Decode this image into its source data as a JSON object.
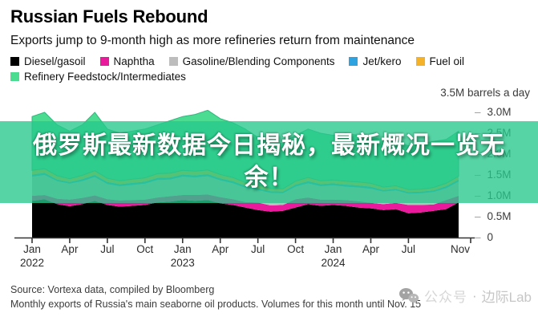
{
  "header": {
    "title": "Russian Fuels Rebound",
    "subtitle": "Exports jump to 9-month high as more refineries return from maintenance"
  },
  "chart": {
    "unit_label": "3.5M barrels a day"
  },
  "banner": {
    "line1": "俄罗斯最新数据今日揭秘，最新概况一览无",
    "line2": "余！",
    "bg_color": "#26C88C",
    "bg_opacity": 0.78,
    "text_color": "#FFFFFF"
  },
  "footer": {
    "source": "Source: Vortexa data, compiled by Bloomberg",
    "note": "Monthly exports of Russia's main seaborne oil products. Volumes for this month until Nov. 15",
    "watermark_account": "公众号",
    "watermark_separator": "·",
    "watermark_name": "边际Lab"
  },
  "chart_data": {
    "type": "area",
    "stacked": true,
    "title": "Russian Fuels Rebound",
    "unit": "million barrels a day",
    "ylim": [
      0,
      3.5
    ],
    "grid": false,
    "legend_position": "top",
    "axis_color": "#333333",
    "x_months": [
      "Jan 2022",
      "Feb 2022",
      "Mar 2022",
      "Apr 2022",
      "May 2022",
      "Jun 2022",
      "Jul 2022",
      "Aug 2022",
      "Sep 2022",
      "Oct 2022",
      "Nov 2022",
      "Dec 2022",
      "Jan 2023",
      "Feb 2023",
      "Mar 2023",
      "Apr 2023",
      "May 2023",
      "Jun 2023",
      "Jul 2023",
      "Aug 2023",
      "Sep 2023",
      "Oct 2023",
      "Nov 2023",
      "Dec 2023",
      "Jan 2024",
      "Feb 2024",
      "Mar 2024",
      "Apr 2024",
      "May 2024",
      "Jun 2024",
      "Jul 2024",
      "Aug 2024",
      "Sep 2024",
      "Oct 2024",
      "Nov 2024"
    ],
    "x_ticks": [
      {
        "i": 0,
        "label": "Jan",
        "year": "2022"
      },
      {
        "i": 3,
        "label": "Apr"
      },
      {
        "i": 6,
        "label": "Jul"
      },
      {
        "i": 9,
        "label": "Oct"
      },
      {
        "i": 12,
        "label": "Jan",
        "year": "2023"
      },
      {
        "i": 15,
        "label": "Apr"
      },
      {
        "i": 18,
        "label": "Jul"
      },
      {
        "i": 21,
        "label": "Oct"
      },
      {
        "i": 24,
        "label": "Jan",
        "year": "2024"
      },
      {
        "i": 27,
        "label": "Apr"
      },
      {
        "i": 30,
        "label": "Jul"
      },
      {
        "i": 34,
        "label": "Nov"
      }
    ],
    "y_ticks": [
      {
        "v": 0,
        "label": "0"
      },
      {
        "v": 0.5,
        "label": "0.5M"
      },
      {
        "v": 1.0,
        "label": "1.0M"
      },
      {
        "v": 1.5,
        "label": "1.5M"
      },
      {
        "v": 2.0,
        "label": "2.0M"
      },
      {
        "v": 2.5,
        "label": "2.5M"
      },
      {
        "v": 3.0,
        "label": "3.0M"
      }
    ],
    "series": [
      {
        "name": "Diesel/gasoil",
        "color": "#000000",
        "values": [
          0.88,
          0.92,
          0.8,
          0.75,
          0.8,
          0.88,
          0.78,
          0.74,
          0.76,
          0.78,
          0.84,
          0.86,
          0.9,
          0.88,
          0.9,
          0.82,
          0.78,
          0.72,
          0.66,
          0.62,
          0.64,
          0.72,
          0.8,
          0.76,
          0.78,
          0.76,
          0.72,
          0.7,
          0.66,
          0.68,
          0.58,
          0.6,
          0.64,
          0.68,
          0.84
        ]
      },
      {
        "name": "Naphtha",
        "color": "#EA1A9C",
        "values": [
          0.12,
          0.1,
          0.13,
          0.16,
          0.15,
          0.13,
          0.14,
          0.15,
          0.14,
          0.13,
          0.12,
          0.13,
          0.12,
          0.14,
          0.13,
          0.15,
          0.14,
          0.13,
          0.18,
          0.15,
          0.14,
          0.2,
          0.16,
          0.15,
          0.13,
          0.14,
          0.15,
          0.13,
          0.14,
          0.15,
          0.2,
          0.18,
          0.15,
          0.22,
          0.16
        ]
      },
      {
        "name": "Gasoline/Blending Components",
        "color": "#BDBDBD",
        "values": [
          0.46,
          0.48,
          0.42,
          0.38,
          0.4,
          0.44,
          0.36,
          0.34,
          0.36,
          0.38,
          0.42,
          0.4,
          0.44,
          0.42,
          0.44,
          0.4,
          0.38,
          0.34,
          0.3,
          0.3,
          0.28,
          0.3,
          0.34,
          0.32,
          0.34,
          0.32,
          0.33,
          0.34,
          0.3,
          0.3,
          0.27,
          0.28,
          0.3,
          0.28,
          0.34
        ]
      },
      {
        "name": "Jet/kero",
        "color": "#2FA3DF",
        "values": [
          0.05,
          0.05,
          0.04,
          0.04,
          0.05,
          0.05,
          0.05,
          0.05,
          0.05,
          0.05,
          0.05,
          0.05,
          0.05,
          0.05,
          0.05,
          0.05,
          0.05,
          0.05,
          0.04,
          0.04,
          0.04,
          0.05,
          0.05,
          0.05,
          0.05,
          0.05,
          0.05,
          0.05,
          0.04,
          0.04,
          0.04,
          0.04,
          0.04,
          0.05,
          0.05
        ]
      },
      {
        "name": "Fuel oil",
        "color": "#F3B229",
        "values": [
          0.1,
          0.1,
          0.09,
          0.08,
          0.09,
          0.1,
          0.09,
          0.08,
          0.09,
          0.09,
          0.1,
          0.1,
          0.1,
          0.1,
          0.1,
          0.09,
          0.09,
          0.08,
          0.08,
          0.07,
          0.07,
          0.08,
          0.09,
          0.08,
          0.08,
          0.08,
          0.08,
          0.08,
          0.07,
          0.07,
          0.06,
          0.06,
          0.07,
          0.07,
          0.08
        ]
      },
      {
        "name": "Refinery Feedstock/Intermediates",
        "color": "#4BDB91",
        "values": [
          1.29,
          1.35,
          1.22,
          1.14,
          1.21,
          1.4,
          1.18,
          1.14,
          1.15,
          1.17,
          1.17,
          1.26,
          1.29,
          1.36,
          1.43,
          1.34,
          1.31,
          1.28,
          1.14,
          1.12,
          1.08,
          1.1,
          1.16,
          1.14,
          1.07,
          1.15,
          1.12,
          1.1,
          1.14,
          1.06,
          1.05,
          1.09,
          1.1,
          1.05,
          1.08
        ]
      }
    ]
  }
}
